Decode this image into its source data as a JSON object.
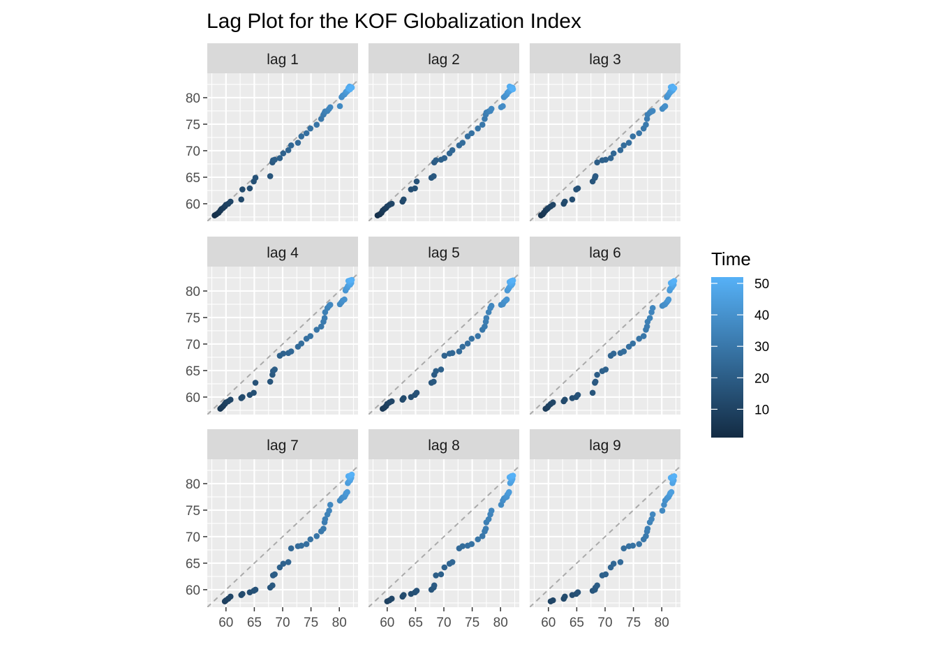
{
  "chart_data": {
    "type": "scatter",
    "title": "Lag Plot for the KOF Globalization Index",
    "xlabel": "",
    "ylabel": "",
    "facets": [
      "lag 1",
      "lag 2",
      "lag 3",
      "lag 4",
      "lag 5",
      "lag 6",
      "lag 7",
      "lag 8",
      "lag 9"
    ],
    "x_ticks": [
      "60",
      "65",
      "70",
      "75",
      "80"
    ],
    "y_ticks": [
      "60",
      "65",
      "70",
      "75",
      "80"
    ],
    "xlim": [
      56.7,
      83.3
    ],
    "ylim": [
      56.7,
      84.6
    ],
    "grid": true,
    "reference_line": "y = x (dashed grey)",
    "legend": {
      "title": "Time",
      "position": "right",
      "ticks": [
        "10",
        "20",
        "30",
        "40",
        "50"
      ],
      "range": [
        1,
        52
      ],
      "colors": {
        "low": "#132B43",
        "high": "#56B1F7"
      }
    },
    "series": [
      {
        "values": [
          57.8,
          58.0,
          58.3,
          58.7,
          59.0,
          59.2,
          59.5,
          59.8,
          60.0,
          60.4,
          60.8,
          62.7,
          62.9,
          64.2,
          64.9,
          65.2,
          67.8,
          68.2,
          68.3,
          68.6,
          69.5,
          70.1,
          71.0,
          71.5,
          72.7,
          73.3,
          74.2,
          74.9,
          76.0,
          76.8,
          77.2,
          77.4,
          77.5,
          77.9,
          78.2,
          78.4,
          80.1,
          80.4,
          80.6,
          80.9,
          81.1,
          81.2,
          81.4,
          81.5,
          81.7,
          81.9,
          82.0,
          82.1,
          81.8,
          81.6,
          81.9,
          82.2
        ]
      }
    ],
    "colors": {
      "panel_bg": "#EBEBEB",
      "strip_bg": "#D9D9D9",
      "grid": "#FFFFFF",
      "ref_line": "#AAAAAA"
    }
  }
}
